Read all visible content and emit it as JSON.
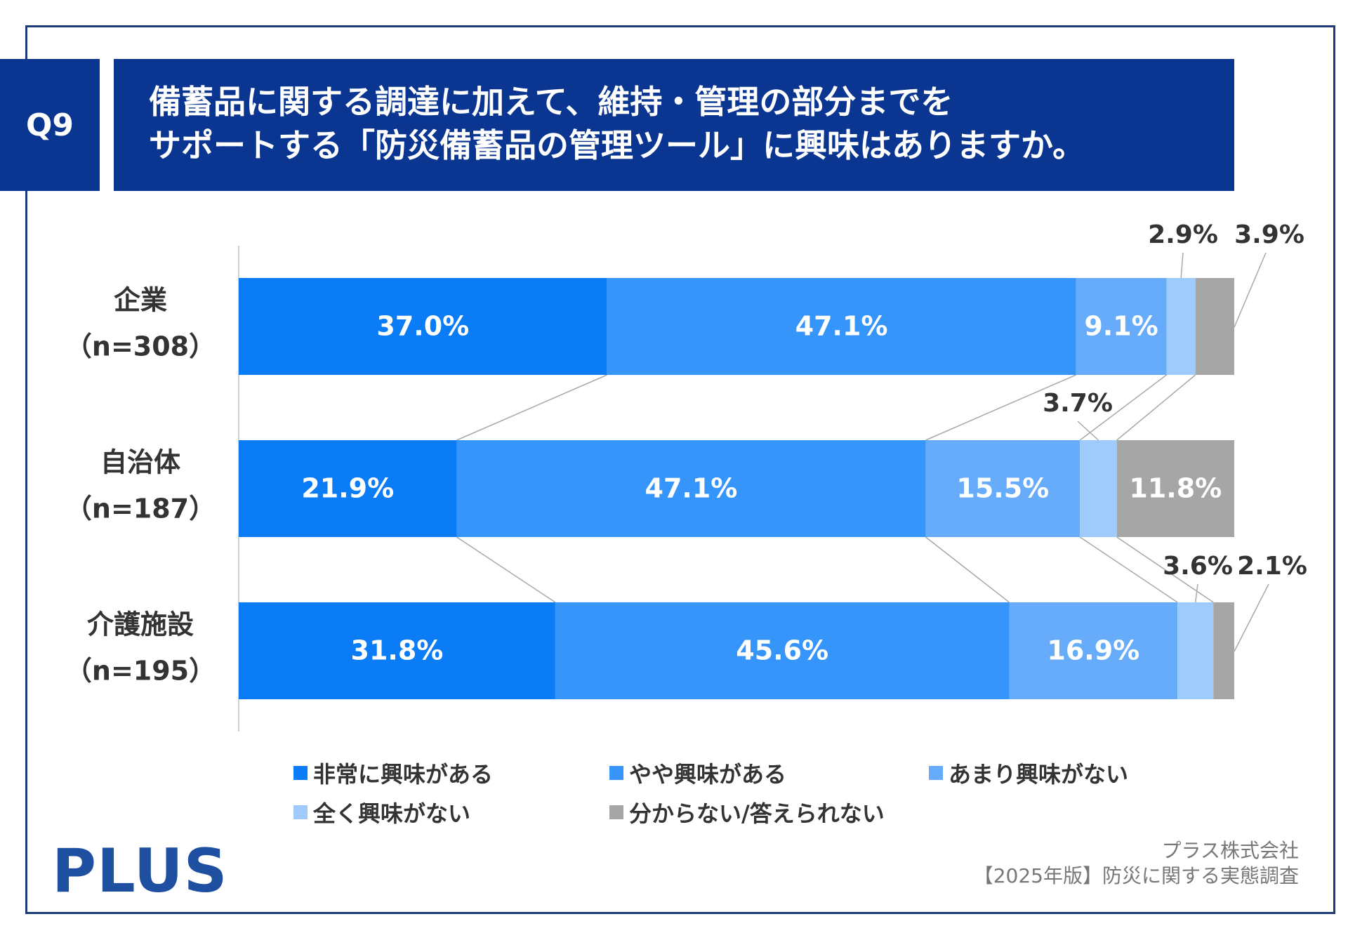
{
  "question": {
    "badge": "Q9",
    "title_line1": "備蓄品に関する調達に加えて、維持・管理の部分までを",
    "title_line2": "サポートする「防災備蓄品の管理ツール」に興味はありますか。"
  },
  "chart_data": {
    "type": "bar",
    "orientation": "horizontal",
    "stacked": "100%",
    "categories": [
      {
        "name": "企業",
        "n": "（n=308）"
      },
      {
        "name": "自治体",
        "n": "（n=187）"
      },
      {
        "name": "介護施設",
        "n": "（n=195）"
      }
    ],
    "series": [
      {
        "name": "非常に興味がある",
        "color": "#0a7cf5",
        "values": [
          37.0,
          21.9,
          31.8
        ],
        "labels": [
          "37.0%",
          "21.9%",
          "31.8%"
        ]
      },
      {
        "name": "やや興味がある",
        "color": "#3595fa",
        "values": [
          47.1,
          47.1,
          45.6
        ],
        "labels": [
          "47.1%",
          "47.1%",
          "45.6%"
        ]
      },
      {
        "name": "あまり興味がない",
        "color": "#66acfb",
        "values": [
          9.1,
          15.5,
          16.9
        ],
        "labels": [
          "9.1%",
          "15.5%",
          "16.9%"
        ]
      },
      {
        "name": "全く興味がない",
        "color": "#9ecbfb",
        "values": [
          2.9,
          3.7,
          3.6
        ],
        "labels": [
          "2.9%",
          "3.7%",
          "3.6%"
        ]
      },
      {
        "name": "分からない/答えられない",
        "color": "#a6a6a6",
        "values": [
          3.9,
          11.8,
          2.1
        ],
        "labels": [
          "3.9%",
          "11.8%",
          "2.1%"
        ]
      }
    ],
    "xlim": [
      0,
      100
    ],
    "connector_lines": true
  },
  "footer": {
    "logo": "PLUS",
    "source_line1": "プラス株式会社",
    "source_line2": "【2025年版】防災に関する実態調査"
  }
}
